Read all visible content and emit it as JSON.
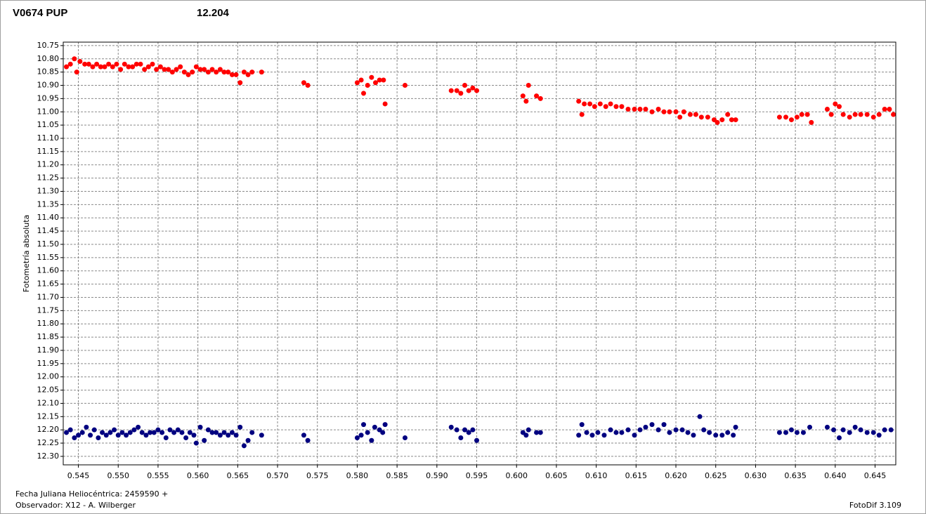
{
  "chart_data": {
    "type": "scatter",
    "x_label": "Fecha Juliana Heliocéntrica: 2459590 +",
    "y_label": "Fotometría absoluta",
    "observer": "Observador: X12 - A. Wilberger",
    "software": "FotoDif 3.109",
    "xlim": [
      0.5431,
      0.6476
    ],
    "ylim": [
      12.332,
      10.737
    ],
    "xticks": [
      0.545,
      {
        "value": 0.55,
        "label": "0.550"
      },
      0.555,
      {
        "value": 0.56,
        "label": "0.560"
      },
      0.565,
      {
        "value": 0.57,
        "label": "0.570"
      },
      0.575,
      {
        "value": 0.58,
        "label": "0.580"
      },
      0.585,
      {
        "value": 0.59,
        "label": "0.590"
      },
      0.595,
      {
        "value": 0.6,
        "label": "0.600"
      },
      0.605,
      {
        "value": 0.61,
        "label": "0.610"
      },
      0.615,
      {
        "value": 0.62,
        "label": "0.620"
      },
      0.625,
      {
        "value": 0.63,
        "label": "0.630"
      },
      0.635,
      {
        "value": 0.64,
        "label": "0.640"
      },
      0.645
    ],
    "yticks": [
      10.75,
      {
        "value": 10.8,
        "label": "10.80"
      },
      10.85,
      {
        "value": 10.9,
        "label": "10.90"
      },
      10.95,
      {
        "value": 11,
        "label": "11.00"
      },
      11.05,
      {
        "value": 11.1,
        "label": "11.10"
      },
      11.15,
      {
        "value": 11.2,
        "label": "11.20"
      },
      11.25,
      {
        "value": 11.3,
        "label": "11.30"
      },
      11.35,
      {
        "value": 11.4,
        "label": "11.40"
      },
      11.45,
      {
        "value": 11.5,
        "label": "11.50"
      },
      11.55,
      {
        "value": 11.6,
        "label": "11.60"
      },
      11.65,
      {
        "value": 11.7,
        "label": "11.70"
      },
      11.75,
      {
        "value": 11.8,
        "label": "11.80"
      },
      11.85,
      {
        "value": 11.9,
        "label": "11.90"
      },
      11.95,
      {
        "value": 12,
        "label": "12.00"
      },
      12.05,
      {
        "value": 12.1,
        "label": "12.10"
      },
      12.15,
      {
        "value": 12.2,
        "label": "12.20"
      },
      12.25,
      {
        "value": 12.3,
        "label": "12.30"
      }
    ],
    "grid": true,
    "series": [
      {
        "name": "V0674 PUP",
        "color": "#ff0000",
        "x": [
          0.5435,
          0.544,
          0.5445,
          0.5448,
          0.5452,
          0.5458,
          0.5463,
          0.5468,
          0.5473,
          0.5478,
          0.5483,
          0.5488,
          0.5493,
          0.5498,
          0.5503,
          0.5508,
          0.5513,
          0.5518,
          0.5523,
          0.5528,
          0.5533,
          0.5538,
          0.5543,
          0.5548,
          0.5553,
          0.5558,
          0.5563,
          0.5568,
          0.5573,
          0.5578,
          0.5583,
          0.5588,
          0.5593,
          0.5598,
          0.5603,
          0.5608,
          0.5613,
          0.5618,
          0.5623,
          0.5628,
          0.5633,
          0.5638,
          0.5643,
          0.5648,
          0.5653,
          0.5658,
          0.5663,
          0.5668,
          0.568,
          0.5733,
          0.5738,
          0.58,
          0.5805,
          0.5808,
          0.5813,
          0.5818,
          0.5823,
          0.5828,
          0.5833,
          0.5835,
          0.586,
          0.5918,
          0.5925,
          0.593,
          0.5935,
          0.594,
          0.5945,
          0.595,
          0.6008,
          0.6012,
          0.6015,
          0.6025,
          0.603,
          0.6078,
          0.6082,
          0.6085,
          0.6092,
          0.6098,
          0.6105,
          0.6112,
          0.6118,
          0.6125,
          0.6132,
          0.614,
          0.6148,
          0.6155,
          0.6162,
          0.617,
          0.6178,
          0.6185,
          0.6192,
          0.62,
          0.6205,
          0.621,
          0.6218,
          0.6225,
          0.6232,
          0.624,
          0.6248,
          0.6252,
          0.6258,
          0.6265,
          0.627,
          0.6275,
          0.633,
          0.6338,
          0.6345,
          0.6352,
          0.6358,
          0.6365,
          0.637,
          0.639,
          0.6395,
          0.64,
          0.6405,
          0.641,
          0.6418,
          0.6425,
          0.6432,
          0.644,
          0.6448,
          0.6455,
          0.6462,
          0.6468,
          0.6473
        ],
        "values": [
          10.83,
          10.82,
          10.8,
          10.85,
          10.81,
          10.82,
          10.82,
          10.83,
          10.82,
          10.83,
          10.83,
          10.82,
          10.83,
          10.82,
          10.84,
          10.82,
          10.83,
          10.83,
          10.82,
          10.82,
          10.84,
          10.83,
          10.82,
          10.84,
          10.83,
          10.84,
          10.84,
          10.85,
          10.84,
          10.83,
          10.85,
          10.86,
          10.85,
          10.83,
          10.84,
          10.84,
          10.85,
          10.84,
          10.85,
          10.84,
          10.85,
          10.85,
          10.86,
          10.86,
          10.89,
          10.85,
          10.86,
          10.85,
          10.85,
          10.89,
          10.9,
          10.89,
          10.88,
          10.93,
          10.9,
          10.87,
          10.89,
          10.88,
          10.88,
          10.97,
          10.9,
          10.92,
          10.92,
          10.93,
          10.9,
          10.92,
          10.91,
          10.92,
          10.94,
          10.96,
          10.9,
          10.94,
          10.95,
          10.96,
          11.01,
          10.97,
          10.97,
          10.98,
          10.97,
          10.98,
          10.97,
          10.98,
          10.98,
          10.99,
          10.99,
          10.99,
          10.99,
          11,
          10.99,
          11,
          11,
          11,
          11.02,
          11,
          11.01,
          11.01,
          11.02,
          11.02,
          11.03,
          11.04,
          11.03,
          11.01,
          11.03,
          11.03,
          11.02,
          11.02,
          11.03,
          11.02,
          11.01,
          11.01,
          11.04,
          10.99,
          11.01,
          10.97,
          10.98,
          11.01,
          11.02,
          11.01,
          11.01,
          11.01,
          11.02,
          11.01,
          10.99,
          10.99,
          11.01
        ]
      },
      {
        "name": "12.204",
        "color": "#000080",
        "x": [
          0.5435,
          0.544,
          0.5445,
          0.545,
          0.5455,
          0.546,
          0.5465,
          0.547,
          0.5475,
          0.548,
          0.5485,
          0.549,
          0.5495,
          0.55,
          0.5505,
          0.551,
          0.5515,
          0.552,
          0.5525,
          0.553,
          0.5535,
          0.554,
          0.5545,
          0.555,
          0.5555,
          0.556,
          0.5565,
          0.557,
          0.5575,
          0.558,
          0.5585,
          0.559,
          0.5595,
          0.5598,
          0.5603,
          0.5608,
          0.5613,
          0.5618,
          0.5623,
          0.5628,
          0.5633,
          0.5638,
          0.5643,
          0.5648,
          0.5653,
          0.5658,
          0.5663,
          0.5668,
          0.568,
          0.5733,
          0.5738,
          0.58,
          0.5805,
          0.5808,
          0.5813,
          0.5818,
          0.5822,
          0.5828,
          0.5832,
          0.5835,
          0.586,
          0.5918,
          0.5925,
          0.593,
          0.5935,
          0.594,
          0.5945,
          0.595,
          0.6008,
          0.6012,
          0.6015,
          0.6025,
          0.603,
          0.6078,
          0.6082,
          0.6088,
          0.6095,
          0.6102,
          0.611,
          0.6118,
          0.6125,
          0.6132,
          0.614,
          0.6148,
          0.6155,
          0.6162,
          0.617,
          0.6178,
          0.6185,
          0.6192,
          0.62,
          0.6208,
          0.6215,
          0.6222,
          0.623,
          0.6235,
          0.6242,
          0.625,
          0.6258,
          0.6265,
          0.6272,
          0.6275,
          0.633,
          0.6338,
          0.6345,
          0.6352,
          0.636,
          0.6368,
          0.639,
          0.6398,
          0.6405,
          0.641,
          0.6418,
          0.6425,
          0.6432,
          0.644,
          0.6448,
          0.6455,
          0.6462,
          0.647
        ],
        "values": [
          12.21,
          12.2,
          12.23,
          12.22,
          12.21,
          12.19,
          12.22,
          12.2,
          12.23,
          12.21,
          12.22,
          12.21,
          12.2,
          12.22,
          12.21,
          12.22,
          12.21,
          12.2,
          12.19,
          12.21,
          12.22,
          12.21,
          12.21,
          12.2,
          12.21,
          12.23,
          12.2,
          12.21,
          12.2,
          12.21,
          12.23,
          12.21,
          12.22,
          12.25,
          12.19,
          12.24,
          12.2,
          12.21,
          12.21,
          12.22,
          12.21,
          12.22,
          12.21,
          12.22,
          12.19,
          12.26,
          12.24,
          12.21,
          12.22,
          12.22,
          12.24,
          12.23,
          12.22,
          12.18,
          12.21,
          12.24,
          12.19,
          12.2,
          12.21,
          12.18,
          12.23,
          12.19,
          12.2,
          12.23,
          12.2,
          12.21,
          12.2,
          12.24,
          12.21,
          12.22,
          12.2,
          12.21,
          12.21,
          12.22,
          12.18,
          12.21,
          12.22,
          12.21,
          12.22,
          12.2,
          12.21,
          12.21,
          12.2,
          12.22,
          12.2,
          12.19,
          12.18,
          12.2,
          12.18,
          12.21,
          12.2,
          12.2,
          12.21,
          12.22,
          12.15,
          12.2,
          12.21,
          12.22,
          12.22,
          12.21,
          12.22,
          12.19,
          12.21,
          12.21,
          12.2,
          12.21,
          12.21,
          12.19,
          12.19,
          12.2,
          12.23,
          12.2,
          12.21,
          12.19,
          12.2,
          12.21,
          12.21,
          12.22,
          12.2,
          12.2
        ]
      }
    ]
  }
}
